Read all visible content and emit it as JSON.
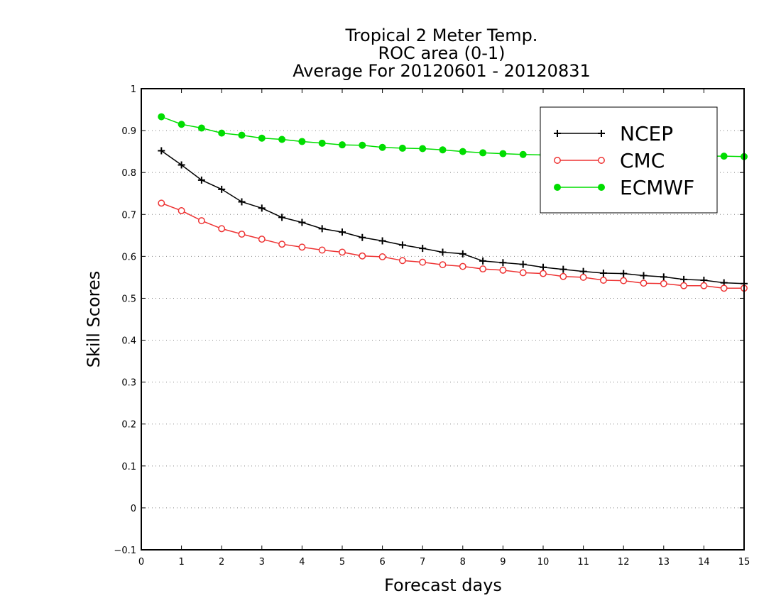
{
  "chart_data": {
    "type": "line",
    "title_lines": [
      "Tropical 2 Meter Temp.",
      "ROC area (0-1)",
      "Average For 20120601 - 20120831"
    ],
    "xlabel": "Forecast days",
    "ylabel": "Skill Scores",
    "xlim": [
      0,
      15
    ],
    "ylim": [
      -0.1,
      1
    ],
    "x_ticks": [
      "0",
      "1",
      "2",
      "3",
      "4",
      "5",
      "6",
      "7",
      "8",
      "9",
      "10",
      "11",
      "12",
      "13",
      "14",
      "15"
    ],
    "y_ticks": [
      "−0.1",
      "0",
      "0.1",
      "0.2",
      "0.3",
      "0.4",
      "0.5",
      "0.6",
      "0.7",
      "0.8",
      "0.9",
      "1"
    ],
    "grid": true,
    "legend_position": "top-right",
    "x": [
      0.5,
      1,
      1.5,
      2,
      2.5,
      3,
      3.5,
      4,
      4.5,
      5,
      5.5,
      6,
      6.5,
      7,
      7.5,
      8,
      8.5,
      9,
      9.5,
      10,
      10.5,
      11,
      11.5,
      12,
      12.5,
      13,
      13.5,
      14,
      14.5,
      15
    ],
    "series": [
      {
        "name": "NCEP",
        "color": "#000000",
        "marker": "plus",
        "values": [
          0.852,
          0.818,
          0.782,
          0.76,
          0.73,
          0.715,
          0.693,
          0.681,
          0.666,
          0.658,
          0.645,
          0.637,
          0.627,
          0.619,
          0.61,
          0.606,
          0.589,
          0.585,
          0.581,
          0.574,
          0.569,
          0.564,
          0.56,
          0.559,
          0.554,
          0.551,
          0.545,
          0.543,
          0.537,
          0.535
        ]
      },
      {
        "name": "CMC",
        "color": "#ee3333",
        "marker": "open-circle",
        "values": [
          0.727,
          0.709,
          0.685,
          0.666,
          0.653,
          0.641,
          0.629,
          0.622,
          0.615,
          0.61,
          0.601,
          0.599,
          0.59,
          0.586,
          0.58,
          0.576,
          0.57,
          0.567,
          0.561,
          0.559,
          0.552,
          0.55,
          0.543,
          0.542,
          0.536,
          0.535,
          0.53,
          0.53,
          0.524,
          0.524
        ]
      },
      {
        "name": "ECMWF",
        "color": "#00dd00",
        "marker": "filled-circle",
        "values": [
          0.933,
          0.915,
          0.906,
          0.894,
          0.889,
          0.882,
          0.879,
          0.874,
          0.87,
          0.866,
          0.865,
          0.86,
          0.858,
          0.857,
          0.854,
          0.85,
          0.847,
          0.845,
          0.843,
          0.842,
          0.84,
          0.84,
          0.84,
          0.839,
          0.839,
          0.839,
          0.839,
          0.839,
          0.839,
          0.838
        ]
      }
    ]
  }
}
